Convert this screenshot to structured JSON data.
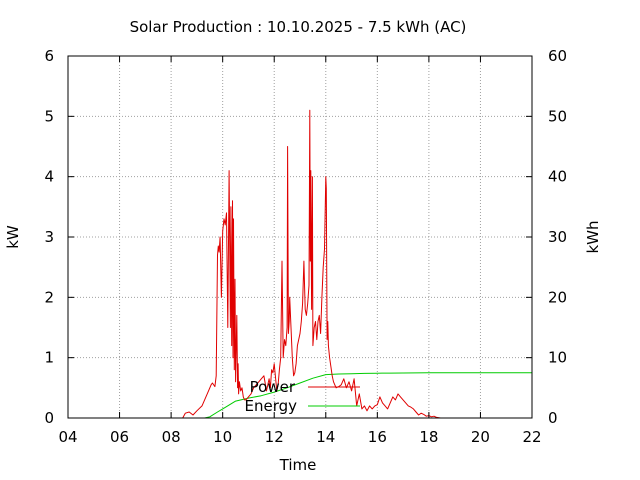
{
  "chart_data": {
    "type": "line",
    "title": "Solar Production : 10.10.2025 - 7.5 kWh (AC)",
    "xlabel": "Time",
    "ylabel": "kW",
    "y2label": "kWh",
    "xlim": [
      4,
      22
    ],
    "ylim": [
      0,
      6
    ],
    "y2lim": [
      0,
      60
    ],
    "x_ticks": [
      "04",
      "06",
      "08",
      "10",
      "12",
      "14",
      "16",
      "18",
      "20",
      "22"
    ],
    "y_ticks": [
      "0",
      "1",
      "2",
      "3",
      "4",
      "5",
      "6"
    ],
    "y2_ticks": [
      "0",
      "10",
      "20",
      "30",
      "40",
      "50",
      "60"
    ],
    "grid": true,
    "legend_position": "inside-bottom-center",
    "series": [
      {
        "name": "Power",
        "axis": "left",
        "color": "#e00000",
        "x": [
          8.45,
          8.55,
          8.7,
          8.85,
          9.0,
          9.2,
          9.35,
          9.45,
          9.55,
          9.6,
          9.7,
          9.75,
          9.8,
          9.83,
          9.86,
          9.9,
          9.95,
          10.0,
          10.05,
          10.1,
          10.15,
          10.2,
          10.25,
          10.3,
          10.32,
          10.35,
          10.38,
          10.4,
          10.42,
          10.45,
          10.48,
          10.5,
          10.55,
          10.58,
          10.6,
          10.62,
          10.65,
          10.7,
          10.75,
          10.8,
          10.85,
          10.9,
          11.0,
          11.1,
          11.2,
          11.3,
          11.4,
          11.5,
          11.6,
          11.7,
          11.75,
          11.8,
          11.85,
          11.9,
          11.95,
          12.0,
          12.1,
          12.15,
          12.2,
          12.25,
          12.3,
          12.35,
          12.4,
          12.45,
          12.5,
          12.52,
          12.55,
          12.58,
          12.6,
          12.65,
          12.7,
          12.75,
          12.8,
          12.85,
          12.9,
          12.95,
          13.0,
          13.05,
          13.1,
          13.15,
          13.2,
          13.25,
          13.3,
          13.35,
          13.38,
          13.4,
          13.42,
          13.45,
          13.48,
          13.5,
          13.55,
          13.6,
          13.65,
          13.7,
          13.75,
          13.8,
          13.85,
          13.9,
          13.95,
          14.0,
          14.02,
          14.05,
          14.08,
          14.1,
          14.15,
          14.2,
          14.25,
          14.3,
          14.35,
          14.4,
          14.5,
          14.6,
          14.7,
          14.8,
          14.9,
          15.0,
          15.1,
          15.2,
          15.3,
          15.4,
          15.5,
          15.6,
          15.7,
          15.8,
          15.9,
          16.0,
          16.1,
          16.2,
          16.3,
          16.4,
          16.5,
          16.6,
          16.7,
          16.8,
          16.9,
          17.0,
          17.1,
          17.2,
          17.3,
          17.4,
          17.5,
          17.6,
          17.7,
          17.8,
          17.9,
          18.0,
          18.1,
          18.2,
          18.3,
          18.45
        ],
        "y": [
          0.0,
          0.08,
          0.1,
          0.05,
          0.12,
          0.2,
          0.35,
          0.45,
          0.55,
          0.58,
          0.52,
          0.7,
          2.7,
          2.85,
          2.75,
          3.0,
          2.0,
          3.1,
          3.3,
          3.2,
          3.4,
          1.5,
          4.1,
          1.5,
          3.5,
          1.2,
          3.6,
          1.0,
          3.3,
          0.8,
          2.3,
          0.6,
          1.7,
          0.5,
          0.9,
          0.4,
          0.6,
          0.45,
          0.5,
          0.35,
          0.3,
          0.3,
          0.35,
          0.4,
          0.5,
          0.55,
          0.6,
          0.65,
          0.7,
          0.45,
          0.55,
          0.65,
          0.5,
          0.8,
          0.75,
          0.9,
          0.45,
          0.55,
          0.8,
          1.0,
          2.6,
          1.0,
          1.3,
          1.2,
          1.5,
          4.5,
          1.4,
          1.6,
          2.0,
          1.5,
          1.0,
          0.7,
          0.75,
          0.9,
          1.2,
          1.3,
          1.4,
          1.6,
          1.9,
          2.6,
          1.8,
          1.7,
          1.9,
          2.2,
          5.1,
          2.6,
          4.1,
          1.8,
          4.0,
          1.2,
          1.5,
          1.6,
          1.3,
          1.6,
          1.7,
          1.4,
          2.0,
          2.5,
          2.8,
          4.0,
          3.8,
          1.3,
          1.6,
          1.2,
          1.0,
          0.85,
          0.7,
          0.6,
          0.55,
          0.5,
          0.52,
          0.55,
          0.65,
          0.5,
          0.6,
          0.45,
          0.65,
          0.2,
          0.4,
          0.15,
          0.2,
          0.12,
          0.2,
          0.15,
          0.2,
          0.22,
          0.35,
          0.25,
          0.2,
          0.15,
          0.25,
          0.35,
          0.3,
          0.4,
          0.35,
          0.3,
          0.25,
          0.2,
          0.18,
          0.15,
          0.1,
          0.05,
          0.08,
          0.06,
          0.03,
          0.04,
          0.02,
          0.03,
          0.01,
          0.0
        ]
      },
      {
        "name": "Energy",
        "axis": "right",
        "color": "#00cc00",
        "x": [
          9.3,
          9.5,
          9.8,
          10.0,
          10.5,
          11.0,
          11.5,
          12.0,
          12.5,
          13.0,
          13.5,
          14.0,
          14.5,
          15.0,
          15.5,
          16.0,
          16.5,
          17.0,
          17.5,
          18.0,
          18.5,
          22.0
        ],
        "y": [
          0.0,
          0.2,
          1.0,
          1.5,
          2.8,
          3.3,
          3.7,
          4.3,
          5.0,
          5.8,
          6.6,
          7.2,
          7.3,
          7.35,
          7.4,
          7.42,
          7.44,
          7.46,
          7.48,
          7.5,
          7.5,
          7.5
        ]
      }
    ]
  }
}
